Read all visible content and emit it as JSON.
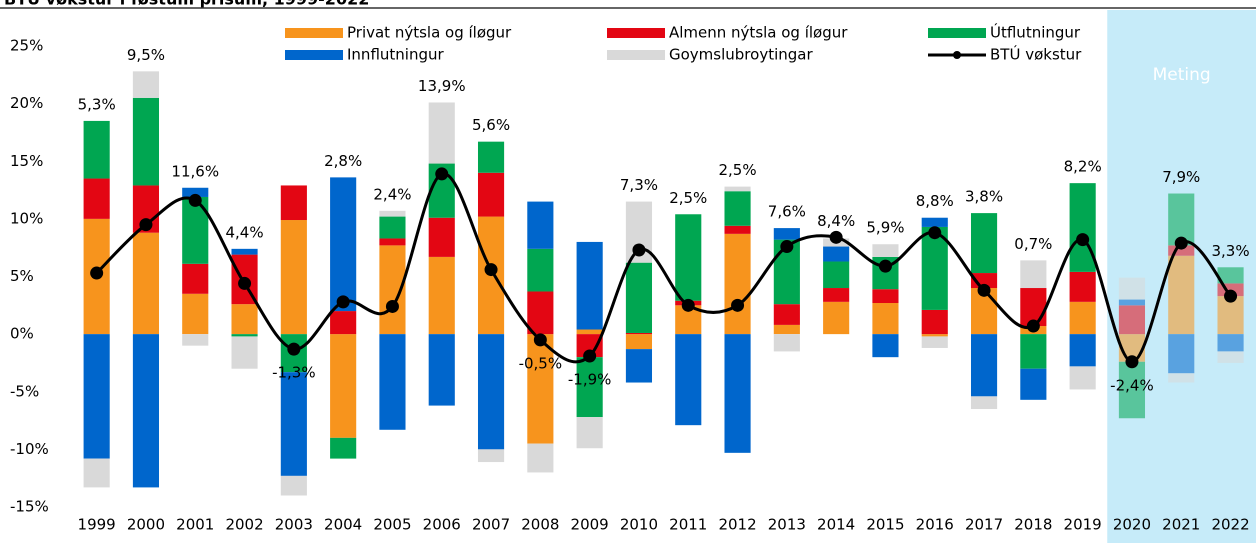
{
  "chart_data": {
    "type": "stacked_bar_line",
    "title": "BTÚ vøkstur í føstum prísum, 1999-2022",
    "categories": [
      "1999",
      "2000",
      "2001",
      "2002",
      "2003",
      "2004",
      "2005",
      "2006",
      "2007",
      "2008",
      "2009",
      "2010",
      "2011",
      "2012",
      "2013",
      "2014",
      "2015",
      "2016",
      "2017",
      "2018",
      "2019",
      "2020",
      "2021",
      "2022"
    ],
    "series": [
      {
        "name": "Privat nýtsla og íløgur",
        "color": "#f7941d",
        "values": [
          10,
          8.8,
          3.5,
          2.6,
          9.9,
          -9.0,
          7.7,
          6.7,
          10.2,
          -9.5,
          0.4,
          -1.3,
          2.5,
          8.7,
          0.8,
          2.8,
          2.7,
          -0.2,
          4.0,
          0.7,
          2.8,
          -2.4,
          6.8,
          3.3
        ]
      },
      {
        "name": "Almenn nýtsla og íløgur",
        "color": "#e30613",
        "values": [
          3.5,
          4.1,
          2.6,
          4.3,
          3.0,
          2.0,
          0.6,
          3.4,
          3.8,
          3.7,
          -2.0,
          0.1,
          0.4,
          0.7,
          1.8,
          1.2,
          1.2,
          2.1,
          1.3,
          3.3,
          2.6,
          2.5,
          0.9,
          1.1
        ]
      },
      {
        "name": "Útflutningur",
        "color": "#00a651",
        "values": [
          5.0,
          7.6,
          5.8,
          -0.2,
          -3.3,
          -1.8,
          1.9,
          4.7,
          2.7,
          3.7,
          -5.2,
          6.1,
          7.5,
          3.0,
          5.6,
          2.3,
          2.8,
          7.2,
          5.2,
          -3.0,
          7.7,
          -4.9,
          4.5,
          1.4
        ]
      },
      {
        "name": "Innflutningur",
        "color": "#0066cc",
        "values": [
          -10.8,
          -13.3,
          0.8,
          0.5,
          -9.0,
          11.6,
          -8.3,
          -6.2,
          -10.0,
          4.1,
          7.6,
          -2.9,
          -7.9,
          -10.3,
          1.0,
          1.3,
          -2.0,
          0.8,
          -5.4,
          -2.7,
          -2.8,
          0.5,
          -3.4,
          -1.5
        ]
      },
      {
        "name": "Goymslubroytingar",
        "color": "#d9d9d9",
        "values": [
          -2.5,
          2.3,
          -1.0,
          -2.8,
          -1.7,
          0,
          0.5,
          5.3,
          -1.1,
          -2.5,
          -2.7,
          5.3,
          0,
          0.4,
          -1.5,
          0.7,
          1.1,
          -1.0,
          -1.1,
          2.4,
          -2.0,
          1.9,
          -0.8,
          -1.0
        ]
      }
    ],
    "line": {
      "name": "BTÚ vøkstur",
      "color": "#000000",
      "values": [
        5.3,
        9.5,
        11.6,
        4.4,
        -1.3,
        2.8,
        2.4,
        13.9,
        5.6,
        -0.5,
        -1.9,
        7.3,
        2.5,
        2.5,
        7.6,
        8.4,
        5.9,
        8.8,
        3.8,
        0.7,
        8.2,
        -2.4,
        7.9,
        3.3
      ],
      "value_labels": [
        "5,3%",
        "9,5%",
        "11,6%",
        "4,4%",
        "-1,3%",
        "2,8%",
        "2,4%",
        "13,9%",
        "5,6%",
        "-0,5%",
        "-1,9%",
        "7,3%",
        "2,5%",
        "2,5%",
        "7,6%",
        "8,4%",
        "5,9%",
        "8,8%",
        "3,8%",
        "0,7%",
        "8,2%",
        "-2,4%",
        "7,9%",
        "3,3%"
      ]
    },
    "annotation": {
      "text": "Meting",
      "from": "2020",
      "color": "#c6ebf9"
    },
    "ylim": [
      -15,
      25
    ],
    "yticks": [
      {
        "value": -15,
        "label": "-15%"
      },
      {
        "value": -10,
        "label": "-10%"
      },
      {
        "value": -5,
        "label": "-5%"
      },
      {
        "value": 0,
        "label": "0%"
      },
      {
        "value": 5,
        "label": "5%"
      },
      {
        "value": 10,
        "label": "10%"
      },
      {
        "value": 15,
        "label": "15%"
      },
      {
        "value": 20,
        "label": "20%"
      },
      {
        "value": 25,
        "label": "25%"
      }
    ],
    "grid": false
  }
}
